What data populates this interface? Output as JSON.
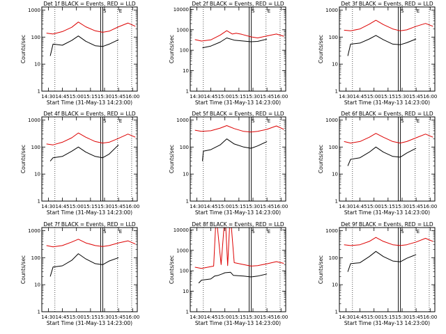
{
  "colors": {
    "events": "#000000",
    "lld": "#dd0000",
    "background": "#ffffff"
  },
  "chart_data": [
    {
      "type": "line",
      "title": "Det 1f BLACK = Events, RED = LLD",
      "xlabel": "Start Time (31-May-13 14:23:00)",
      "ylabel": "Counts/sec",
      "x_tick_labels": [
        "14:30",
        "14:45",
        "15:00",
        "15:15",
        "15:30",
        "15:45",
        "16:00"
      ],
      "y_tick_labels": [
        "1",
        "10",
        "100",
        "1000"
      ],
      "x_range": [
        "14:23",
        "16:05"
      ],
      "y_range": [
        1,
        1300
      ],
      "y_scale": "log",
      "grid": false,
      "markers": [
        "S",
        "E"
      ],
      "marker_x": [
        "15:27",
        "15:44"
      ],
      "dotted_lines_x": [
        "14:37",
        "15:44",
        "15:59"
      ],
      "double_line_x": "15:27",
      "series": [
        {
          "name": "RED",
          "color": "#dd0000",
          "x": [
            "14:28",
            "14:35",
            "14:45",
            "14:55",
            "15:02",
            "15:10",
            "15:20",
            "15:28",
            "15:35",
            "15:45",
            "15:55",
            "16:03"
          ],
          "y": [
            140,
            130,
            160,
            230,
            360,
            240,
            170,
            150,
            165,
            240,
            330,
            250
          ]
        },
        {
          "name": "BLACK",
          "color": "#000000",
          "x": [
            "14:32",
            "14:35",
            "14:45",
            "14:55",
            "15:02",
            "15:10",
            "15:20",
            "15:28",
            "15:35",
            "15:45"
          ],
          "y": [
            20,
            55,
            50,
            75,
            110,
            70,
            48,
            45,
            55,
            80
          ]
        }
      ]
    },
    {
      "type": "line",
      "title": "Det 2f BLACK = Events, RED = LLD",
      "xlabel": "Start Time (31-May-13 14:23:00)",
      "ylabel": "Counts/sec",
      "x_tick_labels": [
        "14:30",
        "14:45",
        "15:00",
        "15:15",
        "15:30",
        "15:45",
        "16:00"
      ],
      "y_tick_labels": [
        "1",
        "10",
        "100",
        "1000",
        "10000"
      ],
      "x_range": [
        "14:23",
        "16:05"
      ],
      "y_range": [
        1,
        13000
      ],
      "y_scale": "log",
      "grid": false,
      "markers": [
        "S",
        "E"
      ],
      "marker_x": [
        "15:27",
        "15:44"
      ],
      "dotted_lines_x": [
        "14:37",
        "15:44",
        "15:59"
      ],
      "double_line_x": "15:27",
      "series": [
        {
          "name": "RED",
          "color": "#dd0000",
          "x": [
            "14:28",
            "14:35",
            "14:45",
            "14:55",
            "15:02",
            "15:08",
            "15:12",
            "15:18",
            "15:28",
            "15:35",
            "15:45",
            "15:55",
            "16:03"
          ],
          "y": [
            330,
            280,
            320,
            550,
            900,
            620,
            680,
            600,
            450,
            400,
            500,
            620,
            480
          ]
        },
        {
          "name": "BLACK",
          "color": "#000000",
          "x": [
            "14:36",
            "14:45",
            "14:55",
            "15:02",
            "15:10",
            "15:20",
            "15:28",
            "15:35",
            "15:45"
          ],
          "y": [
            130,
            160,
            250,
            400,
            310,
            280,
            260,
            270,
            350
          ]
        }
      ]
    },
    {
      "type": "line",
      "title": "Det 3f BLACK = Events, RED = LLD",
      "xlabel": "Start Time (31-May-13 14:23:00)",
      "ylabel": "Counts/sec",
      "x_tick_labels": [
        "14:30",
        "14:45",
        "15:00",
        "15:15",
        "15:30",
        "15:45",
        "16:00"
      ],
      "y_tick_labels": [
        "1",
        "10",
        "100",
        "1000"
      ],
      "x_range": [
        "14:23",
        "16:05"
      ],
      "y_range": [
        1,
        1300
      ],
      "y_scale": "log",
      "grid": false,
      "markers": [
        "S",
        "E"
      ],
      "marker_x": [
        "15:27",
        "15:44"
      ],
      "dotted_lines_x": [
        "14:37",
        "15:44",
        "15:59"
      ],
      "double_line_x": "15:27",
      "series": [
        {
          "name": "RED",
          "color": "#dd0000",
          "x": [
            "14:28",
            "14:35",
            "14:45",
            "14:55",
            "15:02",
            "15:10",
            "15:20",
            "15:28",
            "15:35",
            "15:45",
            "15:55",
            "16:03"
          ],
          "y": [
            180,
            170,
            200,
            300,
            420,
            290,
            200,
            170,
            185,
            250,
            320,
            250
          ]
        },
        {
          "name": "BLACK",
          "color": "#000000",
          "x": [
            "14:32",
            "14:35",
            "14:45",
            "14:55",
            "15:02",
            "15:10",
            "15:20",
            "15:28",
            "15:35",
            "15:45"
          ],
          "y": [
            20,
            55,
            60,
            85,
            115,
            80,
            55,
            52,
            62,
            85
          ]
        }
      ]
    },
    {
      "type": "line",
      "title": "Det 4f BLACK = Events, RED = LLD",
      "xlabel": "Start Time (31-May-13 14:23:00)",
      "ylabel": "Counts/sec",
      "x_tick_labels": [
        "14:30",
        "14:45",
        "15:00",
        "15:15",
        "15:30",
        "15:45",
        "16:00"
      ],
      "y_tick_labels": [
        "1",
        "10",
        "100",
        "1000"
      ],
      "x_range": [
        "14:23",
        "16:05"
      ],
      "y_range": [
        1,
        1300
      ],
      "y_scale": "log",
      "grid": false,
      "markers": [
        "S",
        "E"
      ],
      "marker_x": [
        "15:27",
        "15:44"
      ],
      "dotted_lines_x": [
        "14:37",
        "15:44",
        "15:59"
      ],
      "double_line_x": "15:27",
      "series": [
        {
          "name": "RED",
          "color": "#dd0000",
          "x": [
            "14:28",
            "14:35",
            "14:45",
            "14:55",
            "15:02",
            "15:10",
            "15:20",
            "15:28",
            "15:35",
            "15:45",
            "15:55",
            "16:03"
          ],
          "y": [
            130,
            120,
            150,
            220,
            330,
            230,
            160,
            140,
            150,
            210,
            300,
            230
          ]
        },
        {
          "name": "BLACK",
          "color": "#000000",
          "x": [
            "14:32",
            "14:35",
            "14:45",
            "14:55",
            "15:02",
            "15:10",
            "15:20",
            "15:28",
            "15:35",
            "15:45"
          ],
          "y": [
            30,
            40,
            45,
            70,
            100,
            65,
            45,
            40,
            55,
            120
          ]
        }
      ]
    },
    {
      "type": "line",
      "title": "Det 5f BLACK = Events, RED = LLD",
      "xlabel": "Start Time (31-May-13 14:23:00)",
      "ylabel": "Counts/sec",
      "x_tick_labels": [
        "14:30",
        "14:45",
        "15:00",
        "15:15",
        "15:30",
        "15:45",
        "16:00"
      ],
      "y_tick_labels": [
        "1",
        "10",
        "100",
        "1000"
      ],
      "x_range": [
        "14:23",
        "16:05"
      ],
      "y_range": [
        1,
        1300
      ],
      "y_scale": "log",
      "grid": false,
      "markers": [
        "S",
        "E"
      ],
      "marker_x": [
        "15:27",
        "15:44"
      ],
      "dotted_lines_x": [
        "14:37",
        "15:44",
        "15:59"
      ],
      "double_line_x": "15:27",
      "series": [
        {
          "name": "RED",
          "color": "#dd0000",
          "x": [
            "14:28",
            "14:35",
            "14:45",
            "14:55",
            "15:02",
            "15:10",
            "15:20",
            "15:28",
            "15:35",
            "15:45",
            "15:55",
            "16:03"
          ],
          "y": [
            420,
            380,
            400,
            500,
            620,
            480,
            380,
            360,
            380,
            450,
            600,
            450
          ]
        },
        {
          "name": "BLACK",
          "color": "#000000",
          "x": [
            "14:36",
            "14:37",
            "14:45",
            "14:55",
            "15:02",
            "15:10",
            "15:20",
            "15:28",
            "15:35",
            "15:45"
          ],
          "y": [
            30,
            70,
            80,
            120,
            200,
            130,
            100,
            90,
            110,
            160
          ]
        }
      ]
    },
    {
      "type": "line",
      "title": "Det 6f BLACK = Events, RED = LLD",
      "xlabel": "Start Time (31-May-13 14:23:00)",
      "ylabel": "Counts/sec",
      "x_tick_labels": [
        "14:30",
        "14:45",
        "15:00",
        "15:15",
        "15:30",
        "15:45",
        "16:00"
      ],
      "y_tick_labels": [
        "1",
        "10",
        "100",
        "1000"
      ],
      "x_range": [
        "14:23",
        "16:05"
      ],
      "y_range": [
        1,
        1300
      ],
      "y_scale": "log",
      "grid": false,
      "markers": [
        "S",
        "E"
      ],
      "marker_x": [
        "15:27",
        "15:44"
      ],
      "dotted_lines_x": [
        "14:37",
        "15:44",
        "15:59"
      ],
      "double_line_x": "15:27",
      "series": [
        {
          "name": "RED",
          "color": "#dd0000",
          "x": [
            "14:28",
            "14:35",
            "14:45",
            "14:55",
            "15:02",
            "15:10",
            "15:20",
            "15:28",
            "15:35",
            "15:45",
            "15:55",
            "16:03"
          ],
          "y": [
            160,
            140,
            160,
            230,
            320,
            230,
            160,
            140,
            160,
            220,
            300,
            230
          ]
        },
        {
          "name": "BLACK",
          "color": "#000000",
          "x": [
            "14:32",
            "14:35",
            "14:45",
            "14:55",
            "15:02",
            "15:10",
            "15:20",
            "15:28",
            "15:35",
            "15:45"
          ],
          "y": [
            20,
            35,
            40,
            65,
            100,
            65,
            45,
            42,
            60,
            90
          ]
        }
      ]
    },
    {
      "type": "line",
      "title": "Det 7f BLACK = Events, RED = LLD",
      "xlabel": "Start Time (31-May-13 14:23:00)",
      "ylabel": "Counts/sec",
      "x_tick_labels": [
        "14:30",
        "14:45",
        "15:00",
        "15:15",
        "15:30",
        "15:45",
        "16:00"
      ],
      "y_tick_labels": [
        "1",
        "10",
        "100",
        "1000"
      ],
      "x_range": [
        "14:23",
        "16:05"
      ],
      "y_range": [
        1,
        1300
      ],
      "y_scale": "log",
      "grid": false,
      "markers": [
        "S",
        "E"
      ],
      "marker_x": [
        "15:27",
        "15:44"
      ],
      "dotted_lines_x": [
        "14:37",
        "15:44",
        "15:59"
      ],
      "double_line_x": "15:27",
      "series": [
        {
          "name": "RED",
          "color": "#dd0000",
          "x": [
            "14:28",
            "14:35",
            "14:45",
            "14:55",
            "15:02",
            "15:10",
            "15:20",
            "15:28",
            "15:35",
            "15:45",
            "15:55",
            "16:03"
          ],
          "y": [
            280,
            250,
            280,
            380,
            480,
            350,
            280,
            260,
            280,
            350,
            420,
            320
          ]
        },
        {
          "name": "BLACK",
          "color": "#000000",
          "x": [
            "14:32",
            "14:35",
            "14:45",
            "14:55",
            "15:02",
            "15:10",
            "15:20",
            "15:28",
            "15:35",
            "15:45"
          ],
          "y": [
            20,
            45,
            50,
            80,
            140,
            90,
            60,
            55,
            75,
            100
          ]
        }
      ]
    },
    {
      "type": "line",
      "title": "Det 8f BLACK = Events, RED = LLD",
      "xlabel": "Start Time (31-May-13 14:23:00)",
      "ylabel": "Counts/sec",
      "x_tick_labels": [
        "14:30",
        "14:45",
        "15:00",
        "15:15",
        "15:30",
        "15:45",
        "16:00"
      ],
      "y_tick_labels": [
        "1",
        "10",
        "100",
        "1000",
        "10000"
      ],
      "x_range": [
        "14:23",
        "16:05"
      ],
      "y_range": [
        1,
        13000
      ],
      "y_scale": "log",
      "grid": false,
      "markers": [
        "S",
        "E"
      ],
      "marker_x": [
        "15:27",
        "15:44"
      ],
      "dotted_lines_x": [
        "14:37",
        "15:44",
        "15:59"
      ],
      "double_line_x": "15:27",
      "series": [
        {
          "name": "RED",
          "color": "#dd0000",
          "x": [
            "14:28",
            "14:35",
            "14:48",
            "14:50",
            "14:52",
            "14:56",
            "14:59",
            "15:01",
            "15:03",
            "15:05",
            "15:07",
            "15:10",
            "15:20",
            "15:28",
            "15:35",
            "15:45",
            "15:55",
            "16:03"
          ],
          "y": [
            150,
            130,
            170,
            13000,
            13000,
            200,
            13000,
            13000,
            180,
            13000,
            13000,
            250,
            200,
            170,
            180,
            220,
            280,
            230
          ]
        },
        {
          "name": "BLACK",
          "color": "#000000",
          "x": [
            "14:32",
            "14:35",
            "14:45",
            "14:49",
            "14:53",
            "14:57",
            "15:00",
            "15:06",
            "15:09",
            "15:20",
            "15:28",
            "15:35",
            "15:45"
          ],
          "y": [
            25,
            35,
            40,
            55,
            60,
            70,
            80,
            85,
            60,
            55,
            50,
            55,
            70
          ]
        }
      ]
    },
    {
      "type": "line",
      "title": "Det 9f BLACK = Events, RED = LLD",
      "xlabel": "Start Time (31-May-13 14:23:00)",
      "ylabel": "Counts/sec",
      "x_tick_labels": [
        "14:30",
        "14:45",
        "15:00",
        "15:15",
        "15:30",
        "15:45",
        "16:00"
      ],
      "y_tick_labels": [
        "1",
        "10",
        "100",
        "1000"
      ],
      "x_range": [
        "14:23",
        "16:05"
      ],
      "y_range": [
        1,
        1300
      ],
      "y_scale": "log",
      "grid": false,
      "markers": [
        "S",
        "E"
      ],
      "marker_x": [
        "15:27",
        "15:44"
      ],
      "dotted_lines_x": [
        "14:37",
        "15:44",
        "15:59"
      ],
      "double_line_x": "15:27",
      "series": [
        {
          "name": "RED",
          "color": "#dd0000",
          "x": [
            "14:28",
            "14:35",
            "14:45",
            "14:55",
            "15:02",
            "15:10",
            "15:20",
            "15:28",
            "15:35",
            "15:45",
            "15:55",
            "16:03"
          ],
          "y": [
            300,
            280,
            300,
            400,
            560,
            400,
            300,
            280,
            300,
            380,
            520,
            400
          ]
        },
        {
          "name": "BLACK",
          "color": "#000000",
          "x": [
            "14:32",
            "14:35",
            "14:45",
            "14:55",
            "15:02",
            "15:10",
            "15:20",
            "15:28",
            "15:35",
            "15:45"
          ],
          "y": [
            30,
            60,
            65,
            110,
            170,
            110,
            75,
            70,
            95,
            130
          ]
        }
      ]
    }
  ]
}
